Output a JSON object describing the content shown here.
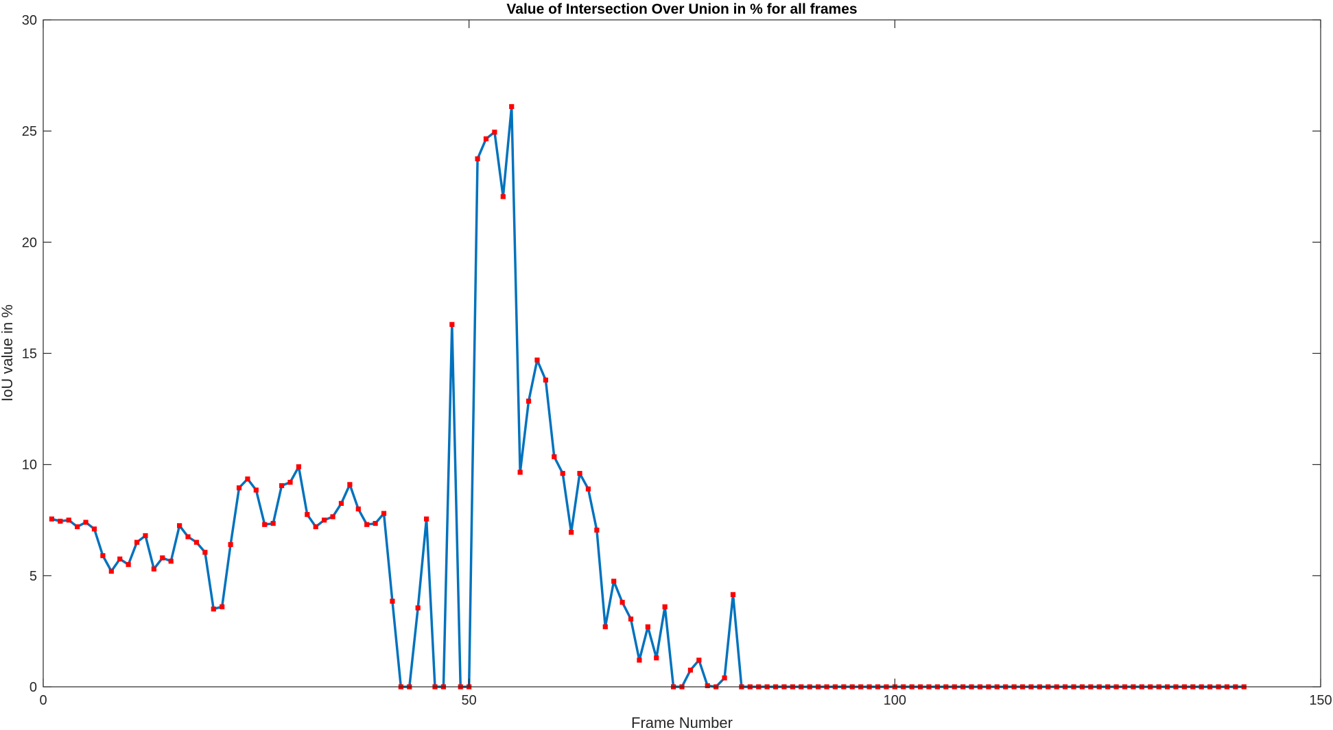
{
  "chart_data": {
    "type": "line",
    "title": "Value of Intersection Over Union in % for all frames",
    "xlabel": "Frame Number",
    "ylabel": "IoU value in %",
    "xlim": [
      0,
      150
    ],
    "ylim": [
      0,
      30
    ],
    "xticks": [
      0,
      50,
      100,
      150
    ],
    "yticks": [
      0,
      5,
      10,
      15,
      20,
      25,
      30
    ],
    "grid": false,
    "line_color": "#0072BD",
    "marker_color": "#FF0000",
    "marker": "square",
    "series": [
      {
        "x": [
          1,
          2,
          3,
          4,
          5,
          6,
          7,
          8,
          9,
          10,
          11,
          12,
          13,
          14,
          15,
          16,
          17,
          18,
          19,
          20,
          21,
          22,
          23,
          24,
          25,
          26,
          27,
          28,
          29,
          30,
          31,
          32,
          33,
          34,
          35,
          36,
          37,
          38,
          39,
          40,
          41,
          42,
          43,
          44,
          45,
          46,
          47,
          48,
          49,
          50,
          51,
          52,
          53,
          54,
          55,
          56,
          57,
          58,
          59,
          60,
          61,
          62,
          63,
          64,
          65,
          66,
          67,
          68,
          69,
          70,
          71,
          72,
          73,
          74,
          75,
          76,
          77,
          78,
          79,
          80,
          81,
          82,
          83,
          84,
          85,
          86,
          87,
          88,
          89,
          90,
          91,
          92,
          93,
          94,
          95,
          96,
          97,
          98,
          99,
          100,
          101,
          102,
          103,
          104,
          105,
          106,
          107,
          108,
          109,
          110,
          111,
          112,
          113,
          114,
          115,
          116,
          117,
          118,
          119,
          120,
          121,
          122,
          123,
          124,
          125,
          126,
          127,
          128,
          129,
          130,
          131,
          132,
          133,
          134,
          135,
          136,
          137,
          138,
          139,
          140,
          141
        ],
        "values": [
          7.55,
          7.45,
          7.5,
          7.2,
          7.4,
          7.1,
          5.9,
          5.2,
          5.75,
          5.5,
          6.5,
          6.8,
          5.3,
          5.8,
          5.65,
          7.25,
          6.75,
          6.5,
          6.05,
          3.5,
          3.6,
          6.4,
          8.95,
          9.35,
          8.85,
          7.3,
          7.35,
          9.05,
          9.2,
          9.9,
          7.75,
          7.2,
          7.5,
          7.65,
          8.25,
          9.1,
          8.0,
          7.3,
          7.35,
          7.8,
          3.85,
          0,
          0,
          3.55,
          7.55,
          0,
          0,
          16.3,
          0,
          0,
          23.75,
          24.65,
          24.95,
          22.05,
          26.1,
          9.65,
          12.85,
          14.7,
          13.8,
          10.35,
          9.6,
          6.95,
          9.6,
          8.9,
          7.05,
          2.7,
          4.75,
          3.8,
          3.05,
          1.2,
          2.7,
          1.3,
          3.6,
          0,
          0,
          0.75,
          1.2,
          0.05,
          0,
          0.4,
          4.15,
          0,
          0,
          0,
          0,
          0,
          0,
          0,
          0,
          0,
          0,
          0,
          0,
          0,
          0,
          0,
          0,
          0,
          0,
          0,
          0,
          0,
          0,
          0,
          0,
          0,
          0,
          0,
          0,
          0,
          0,
          0,
          0,
          0,
          0,
          0,
          0,
          0,
          0,
          0,
          0,
          0,
          0,
          0,
          0,
          0,
          0,
          0,
          0,
          0,
          0,
          0,
          0,
          0,
          0,
          0,
          0,
          0,
          0,
          0,
          0
        ]
      }
    ]
  }
}
